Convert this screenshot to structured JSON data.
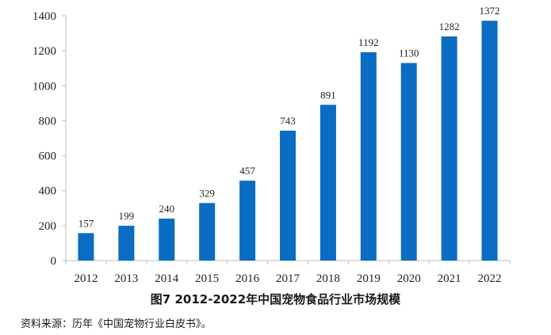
{
  "chart_data": {
    "type": "bar",
    "categories": [
      "2012",
      "2013",
      "2014",
      "2015",
      "2016",
      "2017",
      "2018",
      "2019",
      "2020",
      "2021",
      "2022"
    ],
    "values": [
      157,
      199,
      240,
      329,
      457,
      743,
      891,
      1192,
      1130,
      1282,
      1372
    ],
    "ylim": [
      0,
      1400
    ],
    "yticks": [
      0,
      200,
      400,
      600,
      800,
      1000,
      1200,
      1400
    ],
    "grid": false,
    "bar_color": "#0a6cc2",
    "title": "图7  2012-2022年中国宠物食品行业市场规模"
  },
  "source_note": "资料来源：历年《中国宠物行业白皮书》。"
}
